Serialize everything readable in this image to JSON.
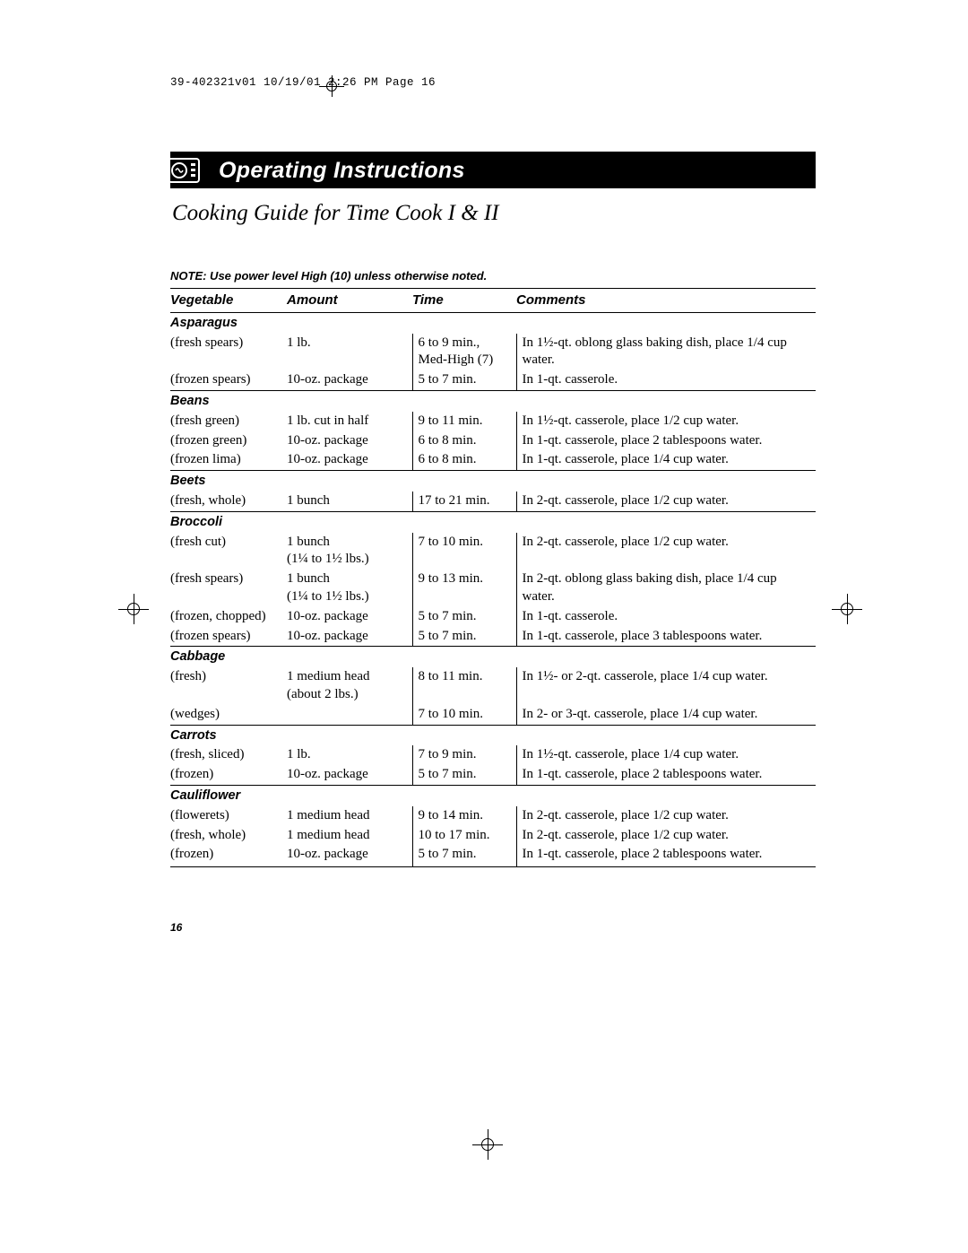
{
  "print_header": "39-402321v01  10/19/01  2:26 PM  Page 16",
  "section_title": "Operating Instructions",
  "subtitle": "Cooking Guide for Time Cook I & II",
  "note": "NOTE: Use power level High (10) unless otherwise noted.",
  "headers": {
    "c1": "Vegetable",
    "c2": "Amount",
    "c3": "Time",
    "c4": "Comments"
  },
  "sections": [
    {
      "name": "Asparagus",
      "rows": [
        {
          "veg": "(fresh spears)",
          "amt": "1 lb.",
          "time": "6 to 9 min., Med-High (7)",
          "comm": "In 1½-qt. oblong glass baking dish, place 1/4 cup water."
        },
        {
          "veg": "(frozen spears)",
          "amt": "10-oz. package",
          "time": "5 to 7 min.",
          "comm": "In 1-qt. casserole."
        }
      ]
    },
    {
      "name": "Beans",
      "rows": [
        {
          "veg": "(fresh green)",
          "amt": "1 lb. cut in half",
          "time": "9 to 11 min.",
          "comm": "In 1½-qt. casserole, place 1/2 cup water."
        },
        {
          "veg": "(frozen green)",
          "amt": "10-oz. package",
          "time": "6 to 8 min.",
          "comm": "In 1-qt. casserole, place 2 tablespoons water."
        },
        {
          "veg": "(frozen lima)",
          "amt": "10-oz. package",
          "time": "6 to 8 min.",
          "comm": "In 1-qt. casserole, place 1/4 cup water."
        }
      ]
    },
    {
      "name": "Beets",
      "rows": [
        {
          "veg": "(fresh, whole)",
          "amt": "1 bunch",
          "time": "17 to 21 min.",
          "comm": "In 2-qt. casserole, place 1/2 cup water."
        }
      ]
    },
    {
      "name": "Broccoli",
      "rows": [
        {
          "veg": "(fresh cut)",
          "amt": "1 bunch\n(1¼ to 1½ lbs.)",
          "time": "7 to 10 min.",
          "comm": "In 2-qt. casserole, place 1/2 cup water."
        },
        {
          "veg": "(fresh spears)",
          "amt": "1 bunch\n(1¼ to 1½ lbs.)",
          "time": "9 to 13 min.",
          "comm": "In 2-qt. oblong glass baking dish, place 1/4 cup water."
        },
        {
          "veg": "(frozen, chopped)",
          "amt": "10-oz. package",
          "time": "5 to 7 min.",
          "comm": "In 1-qt. casserole."
        },
        {
          "veg": "(frozen spears)",
          "amt": "10-oz. package",
          "time": "5 to 7 min.",
          "comm": "In 1-qt. casserole, place 3 tablespoons water."
        }
      ]
    },
    {
      "name": "Cabbage",
      "rows": [
        {
          "veg": "(fresh)",
          "amt": "1 medium head (about 2 lbs.)",
          "time": "8 to 11 min.",
          "comm": "In 1½- or 2-qt. casserole, place 1/4 cup water."
        },
        {
          "veg": "(wedges)",
          "amt": "",
          "time": "7 to 10 min.",
          "comm": "In 2- or 3-qt. casserole, place 1/4 cup water."
        }
      ]
    },
    {
      "name": "Carrots",
      "rows": [
        {
          "veg": "(fresh, sliced)",
          "amt": "1 lb.",
          "time": "7 to 9 min.",
          "comm": "In 1½-qt. casserole, place 1/4 cup water."
        },
        {
          "veg": "(frozen)",
          "amt": "10-oz. package",
          "time": "5 to 7 min.",
          "comm": "In 1-qt. casserole, place 2 tablespoons water."
        }
      ]
    },
    {
      "name": "Cauliflower",
      "rows": [
        {
          "veg": "(flowerets)",
          "amt": "1 medium head",
          "time": "9 to 14 min.",
          "comm": "In 2-qt. casserole, place 1/2 cup water."
        },
        {
          "veg": "(fresh, whole)",
          "amt": "1 medium head",
          "time": "10 to 17 min.",
          "comm": "In 2-qt. casserole, place 1/2 cup water."
        },
        {
          "veg": "(frozen)",
          "amt": "10-oz. package",
          "time": "5 to 7 min.",
          "comm": "In 1-qt. casserole, place 2 tablespoons water."
        }
      ]
    }
  ],
  "page_number": "16",
  "colors": {
    "bar_bg": "#000000",
    "bar_fg": "#ffffff",
    "text": "#000000",
    "rule": "#000000"
  }
}
